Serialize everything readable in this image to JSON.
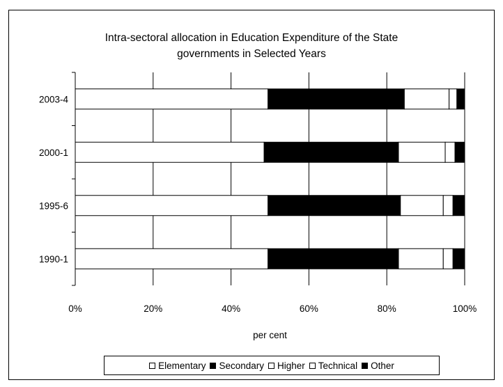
{
  "chart_data": {
    "type": "bar",
    "orientation": "horizontal",
    "stacked": "percent",
    "title_lines": [
      "Intra-sectoral allocation in Education Expenditure of the State",
      "governments in Selected Years"
    ],
    "xlabel": "per cent",
    "ylabel": "",
    "xlim": [
      0,
      100
    ],
    "x_ticks": [
      "0%",
      "20%",
      "40%",
      "60%",
      "80%",
      "100%"
    ],
    "categories": [
      "2003-4",
      "2000-1",
      "1995-6",
      "1990-1"
    ],
    "series": [
      {
        "name": "Elementary",
        "color": "#ffffff",
        "values": [
          49.5,
          48.5,
          49.5,
          49.5
        ]
      },
      {
        "name": "Secondary",
        "color": "#000000",
        "values": [
          35.0,
          34.5,
          34.0,
          33.5
        ]
      },
      {
        "name": "Higher",
        "color": "#ffffff",
        "values": [
          11.5,
          12.0,
          11.0,
          11.5
        ]
      },
      {
        "name": "Technical",
        "color": "#ffffff",
        "values": [
          2.0,
          2.5,
          2.5,
          2.5
        ]
      },
      {
        "name": "Other",
        "color": "#000000",
        "values": [
          2.0,
          2.5,
          3.0,
          3.0
        ]
      }
    ],
    "grid": true,
    "legend_position": "bottom"
  }
}
